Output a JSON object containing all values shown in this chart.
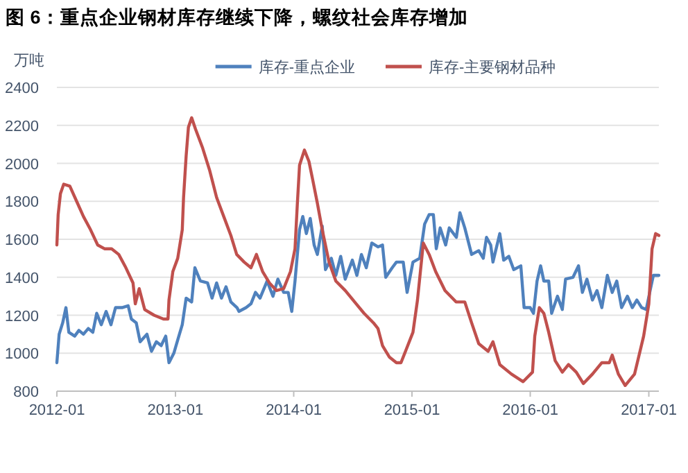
{
  "chart_data": {
    "type": "line",
    "title": "图 6：重点企业钢材库存继续下降，螺纹社会库存增加",
    "ylabel": "万吨",
    "xlim": [
      "2012-01",
      "2017-02"
    ],
    "ylim": [
      800,
      2400
    ],
    "xticks": [
      "2012-01",
      "2013-01",
      "2014-01",
      "2015-01",
      "2016-01",
      "2017-01"
    ],
    "yticks": [
      800,
      1000,
      1200,
      1400,
      1600,
      1800,
      2000,
      2200,
      2400
    ],
    "grid": "y",
    "legend": "top",
    "series": [
      {
        "name": "库存-重点企业",
        "color": "#4f81bd",
        "x": [
          "2012-01-01",
          "2012-01-08",
          "2012-01-19",
          "2012-01-29",
          "2012-02-07",
          "2012-02-25",
          "2012-03-09",
          "2012-03-23",
          "2012-04-07",
          "2012-04-21",
          "2012-05-03",
          "2012-05-17",
          "2012-06-01",
          "2012-06-16",
          "2012-06-30",
          "2012-07-20",
          "2012-08-08",
          "2012-08-18",
          "2012-09-02",
          "2012-09-14",
          "2012-10-05",
          "2012-10-19",
          "2012-11-03",
          "2012-11-18",
          "2012-12-02",
          "2012-12-12",
          "2012-12-27",
          "2013-01-08",
          "2013-01-22",
          "2013-02-03",
          "2013-02-20",
          "2013-03-02",
          "2013-03-19",
          "2013-04-10",
          "2013-04-24",
          "2013-05-08",
          "2013-05-23",
          "2013-06-06",
          "2013-06-21",
          "2013-07-10",
          "2013-07-16",
          "2013-08-07",
          "2013-08-22",
          "2013-09-05",
          "2013-09-19",
          "2013-10-11",
          "2013-10-29",
          "2013-11-13",
          "2013-12-01",
          "2013-12-15",
          "2013-12-26",
          "2014-01-05",
          "2014-01-19",
          "2014-01-29",
          "2014-02-09",
          "2014-02-21",
          "2014-03-05",
          "2014-03-15",
          "2014-03-30",
          "2014-04-09",
          "2014-04-27",
          "2014-05-11",
          "2014-05-26",
          "2014-06-09",
          "2014-07-01",
          "2014-07-15",
          "2014-07-29",
          "2014-08-13",
          "2014-08-30",
          "2014-09-18",
          "2014-10-02",
          "2014-10-12",
          "2014-11-01",
          "2014-11-14",
          "2014-12-05",
          "2014-12-17",
          "2015-01-04",
          "2015-01-25",
          "2015-02-09",
          "2015-02-23",
          "2015-03-08",
          "2015-03-17",
          "2015-03-29",
          "2015-04-15",
          "2015-04-26",
          "2015-05-18",
          "2015-05-29",
          "2015-06-13",
          "2015-07-04",
          "2015-07-26",
          "2015-08-09",
          "2015-08-19",
          "2015-09-01",
          "2015-09-08",
          "2015-09-29",
          "2015-10-11",
          "2015-10-27",
          "2015-11-11",
          "2015-12-03",
          "2015-12-13",
          "2016-01-01",
          "2016-01-11",
          "2016-01-22",
          "2016-02-02",
          "2016-02-12",
          "2016-02-27",
          "2016-03-07",
          "2016-03-25",
          "2016-04-09",
          "2016-04-19",
          "2016-05-12",
          "2016-05-29",
          "2016-06-10",
          "2016-06-24",
          "2016-07-11",
          "2016-07-25",
          "2016-08-09",
          "2016-08-26",
          "2016-09-10",
          "2016-09-24",
          "2016-10-09",
          "2016-10-27",
          "2016-11-11",
          "2016-11-25",
          "2016-12-10",
          "2016-12-24",
          "2017-01-05",
          "2017-01-15",
          "2017-02-01"
        ],
        "values": [
          950,
          1100,
          1160,
          1240,
          1110,
          1090,
          1120,
          1100,
          1130,
          1110,
          1210,
          1150,
          1220,
          1150,
          1240,
          1240,
          1250,
          1180,
          1160,
          1060,
          1100,
          1010,
          1060,
          1040,
          1090,
          950,
          1000,
          1070,
          1150,
          1290,
          1270,
          1450,
          1380,
          1370,
          1290,
          1370,
          1290,
          1350,
          1270,
          1240,
          1220,
          1240,
          1260,
          1320,
          1290,
          1380,
          1300,
          1390,
          1320,
          1320,
          1220,
          1380,
          1650,
          1720,
          1630,
          1710,
          1570,
          1520,
          1670,
          1440,
          1500,
          1410,
          1510,
          1390,
          1490,
          1410,
          1520,
          1450,
          1580,
          1560,
          1570,
          1400,
          1450,
          1480,
          1480,
          1320,
          1480,
          1500,
          1680,
          1730,
          1730,
          1550,
          1660,
          1570,
          1660,
          1610,
          1740,
          1660,
          1520,
          1540,
          1500,
          1610,
          1570,
          1480,
          1630,
          1490,
          1510,
          1440,
          1460,
          1240,
          1240,
          1210,
          1380,
          1460,
          1380,
          1380,
          1210,
          1300,
          1230,
          1390,
          1400,
          1460,
          1320,
          1390,
          1280,
          1330,
          1240,
          1410,
          1320,
          1380,
          1240,
          1300,
          1240,
          1280,
          1240,
          1230,
          1330,
          1410,
          1410
        ]
      },
      {
        "name": "库存-主要钢材品种",
        "color": "#c0504d",
        "x": [
          "2012-01-01",
          "2012-01-05",
          "2012-01-12",
          "2012-01-22",
          "2012-02-10",
          "2012-03-02",
          "2012-03-23",
          "2012-04-14",
          "2012-05-06",
          "2012-05-27",
          "2012-06-18",
          "2012-07-10",
          "2012-08-01",
          "2012-08-23",
          "2012-08-30",
          "2012-09-11",
          "2012-09-28",
          "2012-10-27",
          "2012-11-25",
          "2012-12-09",
          "2012-12-12",
          "2012-12-24",
          "2013-01-08",
          "2013-01-22",
          "2013-01-26",
          "2013-02-03",
          "2013-02-10",
          "2013-02-20",
          "2013-03-04",
          "2013-03-26",
          "2013-04-17",
          "2013-05-08",
          "2013-05-30",
          "2013-06-21",
          "2013-07-09",
          "2013-08-01",
          "2013-08-22",
          "2013-09-08",
          "2013-09-27",
          "2013-10-18",
          "2013-11-09",
          "2013-12-01",
          "2013-12-22",
          "2014-01-05",
          "2014-01-12",
          "2014-01-19",
          "2014-02-03",
          "2014-02-17",
          "2014-03-01",
          "2014-03-15",
          "2014-03-30",
          "2014-04-20",
          "2014-05-11",
          "2014-06-09",
          "2014-07-08",
          "2014-08-06",
          "2014-09-04",
          "2014-09-18",
          "2014-10-02",
          "2014-10-23",
          "2014-11-14",
          "2014-11-28",
          "2014-12-12",
          "2015-01-04",
          "2015-01-18",
          "2015-02-05",
          "2015-02-23",
          "2015-03-15",
          "2015-04-13",
          "2015-05-17",
          "2015-06-13",
          "2015-07-04",
          "2015-07-26",
          "2015-08-24",
          "2015-09-08",
          "2015-09-29",
          "2015-11-04",
          "2015-12-10",
          "2016-01-08",
          "2016-01-15",
          "2016-01-29",
          "2016-02-12",
          "2016-02-27",
          "2016-03-18",
          "2016-04-09",
          "2016-04-28",
          "2016-05-22",
          "2016-06-13",
          "2016-07-11",
          "2016-08-09",
          "2016-09-01",
          "2016-09-10",
          "2016-09-29",
          "2016-10-20",
          "2016-11-18",
          "2016-12-16",
          "2017-01-01",
          "2017-01-11",
          "2017-01-22",
          "2017-02-01"
        ],
        "values": [
          1570,
          1730,
          1840,
          1890,
          1880,
          1800,
          1720,
          1650,
          1570,
          1550,
          1550,
          1520,
          1450,
          1370,
          1260,
          1340,
          1230,
          1200,
          1180,
          1180,
          1280,
          1430,
          1500,
          1650,
          1820,
          2040,
          2190,
          2240,
          2180,
          2080,
          1960,
          1820,
          1720,
          1620,
          1520,
          1480,
          1450,
          1520,
          1430,
          1370,
          1330,
          1340,
          1430,
          1550,
          1780,
          1990,
          2070,
          2010,
          1910,
          1790,
          1650,
          1480,
          1380,
          1330,
          1270,
          1210,
          1160,
          1130,
          1040,
          980,
          950,
          950,
          1010,
          1110,
          1280,
          1580,
          1520,
          1430,
          1330,
          1270,
          1270,
          1160,
          1050,
          1010,
          1060,
          940,
          890,
          850,
          900,
          1090,
          1240,
          1210,
          1110,
          960,
          900,
          940,
          900,
          840,
          890,
          950,
          950,
          990,
          890,
          830,
          890,
          1090,
          1260,
          1550,
          1630,
          1620
        ]
      }
    ]
  }
}
